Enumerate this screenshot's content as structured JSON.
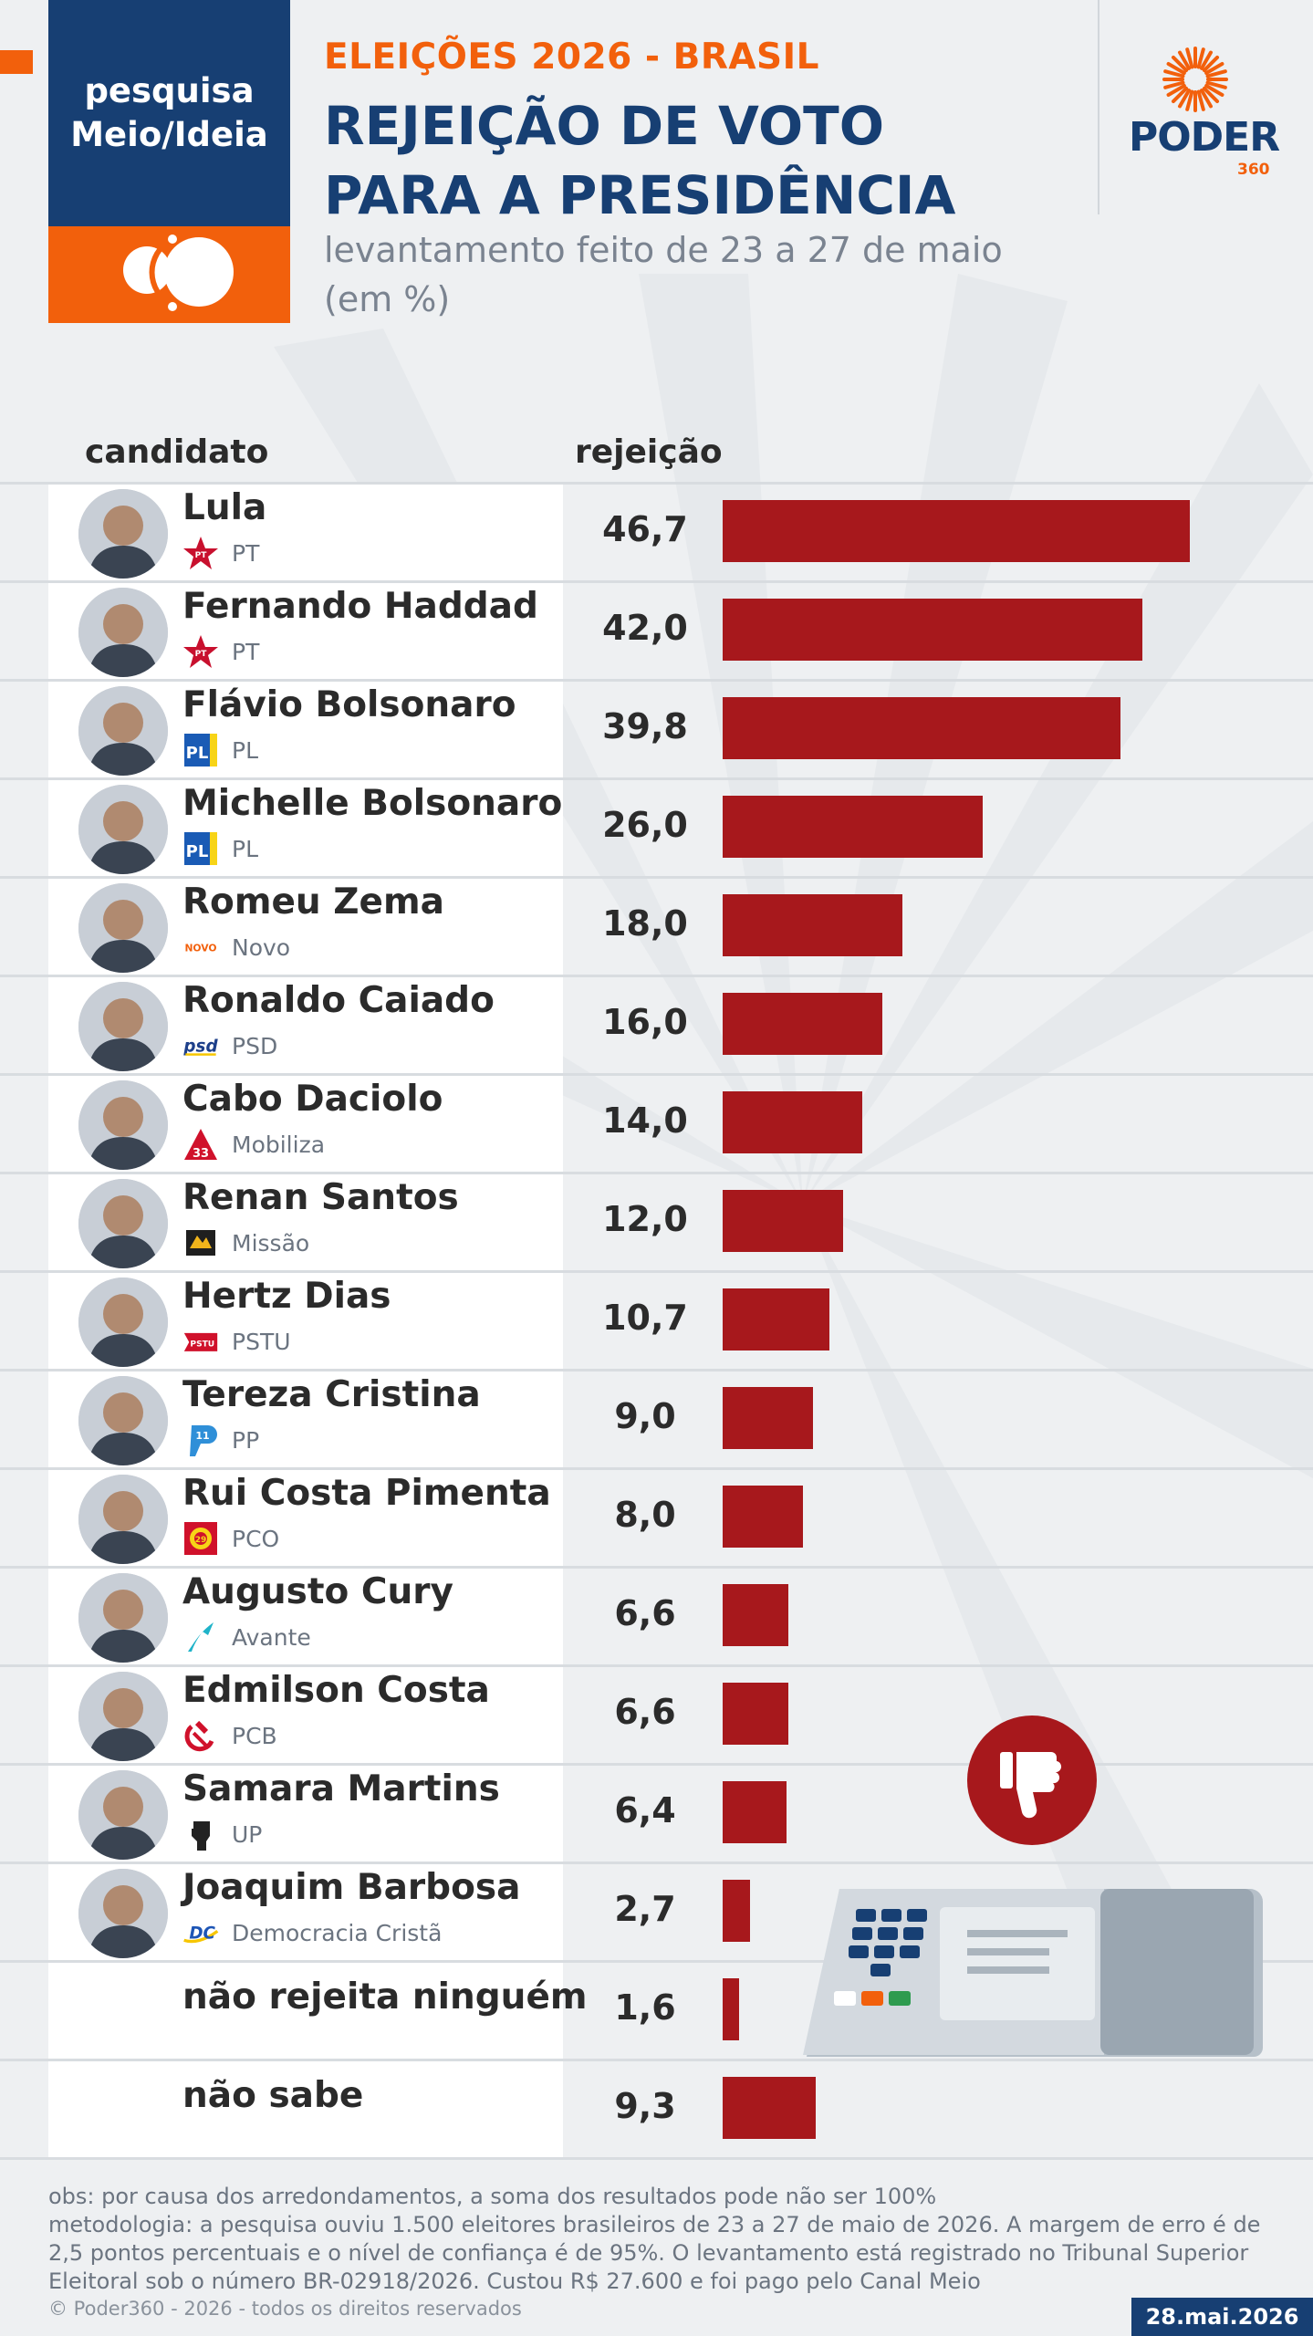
{
  "brand": {
    "line1": "pesquisa",
    "line2": "Meio/Ideia"
  },
  "header": {
    "eyebrow": "ELEIÇÕES 2026 - BRASIL",
    "title_line1": "REJEIÇÃO DE VOTO",
    "title_line2": "PARA A PRESIDÊNCIA",
    "subtitle_line1": "levantamento feito de 23 a 27 de maio",
    "subtitle_line2": "(em %)"
  },
  "logo": {
    "word": "PODER",
    "number": "360"
  },
  "columns": {
    "candidate": "candidato",
    "rejection": "rejeição"
  },
  "colors": {
    "bar": "#a7181c",
    "navy": "#173f73",
    "orange": "#f2600c"
  },
  "chart_data": {
    "type": "bar",
    "orientation": "horizontal",
    "title": "REJEIÇÃO DE VOTO PARA A PRESIDÊNCIA",
    "subtitle": "levantamento feito de 23 a 27 de maio (em %)",
    "xlim": [
      0,
      50
    ],
    "grid": false,
    "rows": [
      {
        "name": "Lula",
        "party": "PT",
        "logo": "pt-star-icon",
        "value": 46.7,
        "label": "46,7"
      },
      {
        "name": "Fernando Haddad",
        "party": "PT",
        "logo": "pt-star-icon",
        "value": 42.0,
        "label": "42,0"
      },
      {
        "name": "Flávio Bolsonaro",
        "party": "PL",
        "logo": "pl-square-icon",
        "value": 39.8,
        "label": "39,8"
      },
      {
        "name": "Michelle Bolsonaro",
        "party": "PL",
        "logo": "pl-square-icon",
        "value": 26.0,
        "label": "26,0"
      },
      {
        "name": "Romeu Zema",
        "party": "Novo",
        "logo": "novo-logo-icon",
        "value": 18.0,
        "label": "18,0"
      },
      {
        "name": "Ronaldo Caiado",
        "party": "PSD",
        "logo": "psd-logo-icon",
        "value": 16.0,
        "label": "16,0"
      },
      {
        "name": "Cabo Daciolo",
        "party": "Mobiliza",
        "logo": "mobiliza-triangle-icon",
        "value": 14.0,
        "label": "14,0"
      },
      {
        "name": "Renan Santos",
        "party": "Missão",
        "logo": "missao-logo-icon",
        "value": 12.0,
        "label": "12,0"
      },
      {
        "name": "Hertz Dias",
        "party": "PSTU",
        "logo": "pstu-flag-icon",
        "value": 10.7,
        "label": "10,7"
      },
      {
        "name": "Tereza Cristina",
        "party": "PP",
        "logo": "pp-logo-icon",
        "value": 9.0,
        "label": "9,0"
      },
      {
        "name": "Rui Costa Pimenta",
        "party": "PCO",
        "logo": "pco-gear-icon",
        "value": 8.0,
        "label": "8,0"
      },
      {
        "name": "Augusto Cury",
        "party": "Avante",
        "logo": "avante-arrow-icon",
        "value": 6.6,
        "label": "6,6"
      },
      {
        "name": "Edmilson Costa",
        "party": "PCB",
        "logo": "hammer-sickle-icon",
        "value": 6.6,
        "label": "6,6"
      },
      {
        "name": "Samara Martins",
        "party": "UP",
        "logo": "raised-fist-icon",
        "value": 6.4,
        "label": "6,4"
      },
      {
        "name": "Joaquim Barbosa",
        "party": "Democracia Cristã",
        "logo": "dc-logo-icon",
        "value": 2.7,
        "label": "2,7"
      },
      {
        "name": "não rejeita ninguém",
        "party": "",
        "logo": "",
        "value": 1.6,
        "label": "1,6"
      },
      {
        "name": "não sabe",
        "party": "",
        "logo": "",
        "value": 9.3,
        "label": "9,3"
      }
    ]
  },
  "footer": {
    "note1": "obs: por causa dos arredondamentos, a soma dos resultados pode não ser 100%",
    "note2": "metodologia: a pesquisa ouviu 1.500 eleitores brasileiros de 23 a 27 de maio de 2026. A margem de erro é de 2,5 pontos percentuais e o nível de confiança é de 95%. O levantamento está registrado no Tribunal Superior Eleitoral sob o número BR-02918/2026. Custou R$ 27.600 e foi pago pelo Canal Meio",
    "copyright": "© Poder360 - 2026 - todos os direitos reservados",
    "date": "28.mai.2026"
  }
}
